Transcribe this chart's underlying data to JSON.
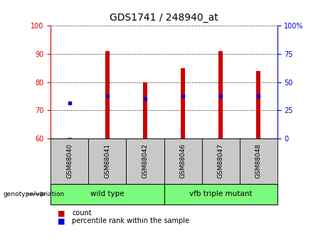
{
  "title": "GDS1741 / 248940_at",
  "samples": [
    "GSM88040",
    "GSM88041",
    "GSM88042",
    "GSM88046",
    "GSM88047",
    "GSM88048"
  ],
  "groups": [
    {
      "name": "wild type",
      "indices": [
        0,
        1,
        2
      ]
    },
    {
      "name": "vfb triple mutant",
      "indices": [
        3,
        4,
        5
      ]
    }
  ],
  "bar_bottom": 60,
  "bar_values": [
    60.3,
    91,
    80,
    85,
    91,
    84
  ],
  "percentile_values": [
    72.5,
    75,
    74,
    75,
    75,
    75
  ],
  "left_ylim": [
    60,
    100
  ],
  "left_yticks": [
    60,
    70,
    80,
    90,
    100
  ],
  "right_ytick_labels": [
    "0",
    "25",
    "50",
    "75",
    "100%"
  ],
  "bar_color": "#cc0000",
  "percentile_color": "#0000cc",
  "left_axis_color": "#cc0000",
  "right_axis_color": "#0000cc",
  "legend_count_label": "count",
  "legend_percentile_label": "percentile rank within the sample",
  "genotype_label": "genotype/variation",
  "bar_width": 0.12,
  "tick_label_area_color": "#c8c8c8",
  "group_area_color": "#7cfc7c",
  "title_fontsize": 10
}
